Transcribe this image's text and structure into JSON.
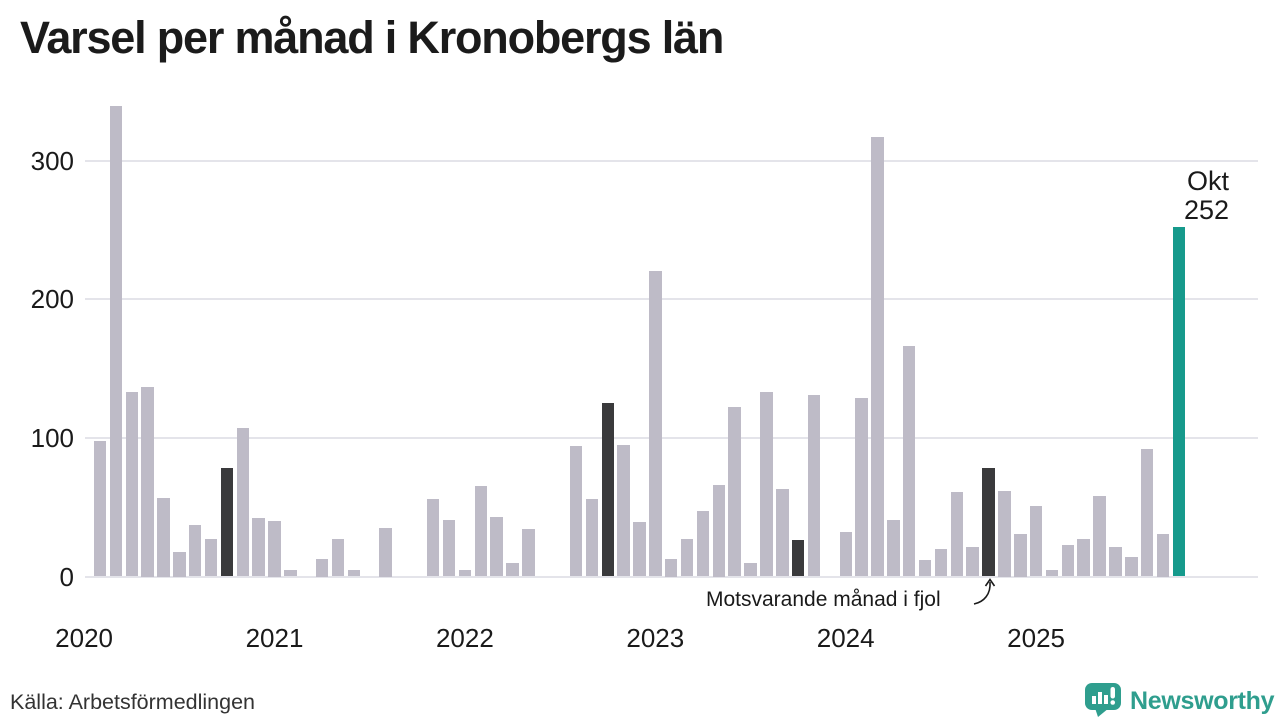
{
  "header": {
    "title": "Varsel per månad i Kronobergs län"
  },
  "chart_data": {
    "type": "bar",
    "title": "Varsel per månad i Kronobergs län",
    "xlabel": "",
    "ylabel": "",
    "ylim": [
      0,
      345
    ],
    "yticks": [
      0,
      100,
      200,
      300
    ],
    "x_year_ticks": [
      "2020",
      "2021",
      "2022",
      "2023",
      "2024",
      "2025"
    ],
    "grid": "horizontal",
    "legend_position": "none",
    "annotation": {
      "text": "Motsvarande månad i fjol",
      "points_to": "2024-10"
    },
    "current_point": {
      "month_label": "Okt",
      "value_label": "252",
      "value": 252
    },
    "colors": {
      "normal": "#bebbc7",
      "same_month_last_year": "#3a3a3c",
      "current": "#169a8c"
    },
    "series": [
      {
        "month": "2020-02",
        "value": 98,
        "role": "normal"
      },
      {
        "month": "2020-03",
        "value": 339,
        "role": "normal"
      },
      {
        "month": "2020-04",
        "value": 133,
        "role": "normal"
      },
      {
        "month": "2020-05",
        "value": 137,
        "role": "normal"
      },
      {
        "month": "2020-06",
        "value": 57,
        "role": "normal"
      },
      {
        "month": "2020-07",
        "value": 18,
        "role": "normal"
      },
      {
        "month": "2020-08",
        "value": 37,
        "role": "normal"
      },
      {
        "month": "2020-09",
        "value": 27,
        "role": "normal"
      },
      {
        "month": "2020-10",
        "value": 78,
        "role": "same_month_last_year"
      },
      {
        "month": "2020-11",
        "value": 107,
        "role": "normal"
      },
      {
        "month": "2020-12",
        "value": 42,
        "role": "normal"
      },
      {
        "month": "2021-01",
        "value": 40,
        "role": "normal"
      },
      {
        "month": "2021-02",
        "value": 5,
        "role": "normal"
      },
      {
        "month": "2021-03",
        "value": 0,
        "role": "normal"
      },
      {
        "month": "2021-04",
        "value": 13,
        "role": "normal"
      },
      {
        "month": "2021-05",
        "value": 27,
        "role": "normal"
      },
      {
        "month": "2021-06",
        "value": 5,
        "role": "normal"
      },
      {
        "month": "2021-07",
        "value": 0,
        "role": "normal"
      },
      {
        "month": "2021-08",
        "value": 35,
        "role": "normal"
      },
      {
        "month": "2021-09",
        "value": 0,
        "role": "normal"
      },
      {
        "month": "2021-10",
        "value": 0,
        "role": "same_month_last_year"
      },
      {
        "month": "2021-11",
        "value": 56,
        "role": "normal"
      },
      {
        "month": "2021-12",
        "value": 41,
        "role": "normal"
      },
      {
        "month": "2022-01",
        "value": 5,
        "role": "normal"
      },
      {
        "month": "2022-02",
        "value": 65,
        "role": "normal"
      },
      {
        "month": "2022-03",
        "value": 43,
        "role": "normal"
      },
      {
        "month": "2022-04",
        "value": 10,
        "role": "normal"
      },
      {
        "month": "2022-05",
        "value": 34,
        "role": "normal"
      },
      {
        "month": "2022-06",
        "value": 0,
        "role": "normal"
      },
      {
        "month": "2022-07",
        "value": 0,
        "role": "normal"
      },
      {
        "month": "2022-08",
        "value": 94,
        "role": "normal"
      },
      {
        "month": "2022-09",
        "value": 56,
        "role": "normal"
      },
      {
        "month": "2022-10",
        "value": 125,
        "role": "same_month_last_year"
      },
      {
        "month": "2022-11",
        "value": 95,
        "role": "normal"
      },
      {
        "month": "2022-12",
        "value": 39,
        "role": "normal"
      },
      {
        "month": "2023-01",
        "value": 220,
        "role": "normal"
      },
      {
        "month": "2023-02",
        "value": 13,
        "role": "normal"
      },
      {
        "month": "2023-03",
        "value": 27,
        "role": "normal"
      },
      {
        "month": "2023-04",
        "value": 47,
        "role": "normal"
      },
      {
        "month": "2023-05",
        "value": 66,
        "role": "normal"
      },
      {
        "month": "2023-06",
        "value": 122,
        "role": "normal"
      },
      {
        "month": "2023-07",
        "value": 10,
        "role": "normal"
      },
      {
        "month": "2023-08",
        "value": 133,
        "role": "normal"
      },
      {
        "month": "2023-09",
        "value": 63,
        "role": "normal"
      },
      {
        "month": "2023-10",
        "value": 26,
        "role": "same_month_last_year"
      },
      {
        "month": "2023-11",
        "value": 131,
        "role": "normal"
      },
      {
        "month": "2023-12",
        "value": 0,
        "role": "normal"
      },
      {
        "month": "2024-01",
        "value": 32,
        "role": "normal"
      },
      {
        "month": "2024-02",
        "value": 129,
        "role": "normal"
      },
      {
        "month": "2024-03",
        "value": 317,
        "role": "normal"
      },
      {
        "month": "2024-04",
        "value": 41,
        "role": "normal"
      },
      {
        "month": "2024-05",
        "value": 166,
        "role": "normal"
      },
      {
        "month": "2024-06",
        "value": 12,
        "role": "normal"
      },
      {
        "month": "2024-07",
        "value": 20,
        "role": "normal"
      },
      {
        "month": "2024-08",
        "value": 61,
        "role": "normal"
      },
      {
        "month": "2024-09",
        "value": 21,
        "role": "normal"
      },
      {
        "month": "2024-10",
        "value": 78,
        "role": "same_month_last_year"
      },
      {
        "month": "2024-11",
        "value": 62,
        "role": "normal"
      },
      {
        "month": "2024-12",
        "value": 31,
        "role": "normal"
      },
      {
        "month": "2025-01",
        "value": 51,
        "role": "normal"
      },
      {
        "month": "2025-02",
        "value": 5,
        "role": "normal"
      },
      {
        "month": "2025-03",
        "value": 23,
        "role": "normal"
      },
      {
        "month": "2025-04",
        "value": 27,
        "role": "normal"
      },
      {
        "month": "2025-05",
        "value": 58,
        "role": "normal"
      },
      {
        "month": "2025-06",
        "value": 21,
        "role": "normal"
      },
      {
        "month": "2025-07",
        "value": 14,
        "role": "normal"
      },
      {
        "month": "2025-08",
        "value": 92,
        "role": "normal"
      },
      {
        "month": "2025-09",
        "value": 31,
        "role": "normal"
      },
      {
        "month": "2025-10",
        "value": 252,
        "role": "current"
      }
    ]
  },
  "footer": {
    "source": "Källa: Arbetsförmedlingen",
    "logo_text": "Newsworthy",
    "logo_icon": "newsworthy-speech-bubble-chart-icon"
  }
}
